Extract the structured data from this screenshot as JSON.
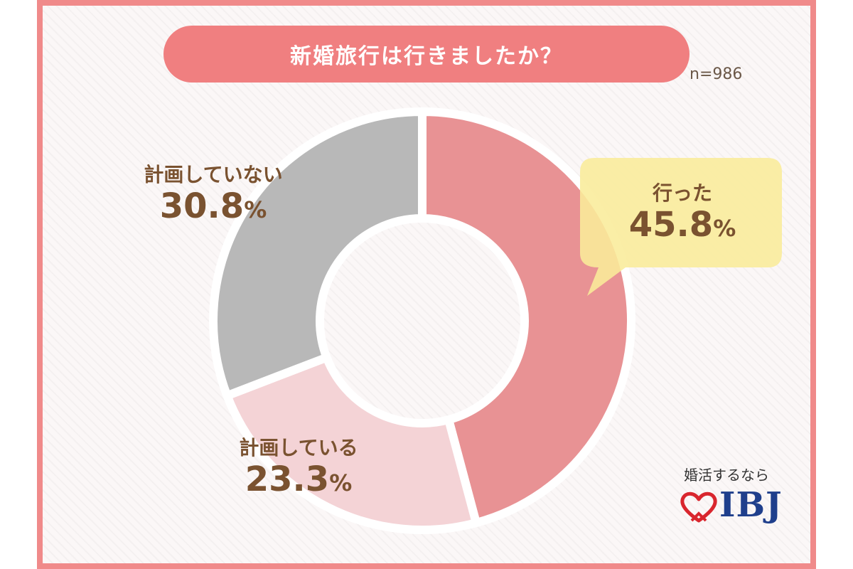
{
  "title": "新婚旅行は行きましたか？",
  "sample_size": "n=986",
  "brand": {
    "tagline": "婚活するなら",
    "logo_text": "IBJ"
  },
  "colors": {
    "frame": "#f08a8a",
    "title_bg": "#f07f80",
    "callout_bg": "#f9ec9a",
    "label_text": "#7a5230"
  },
  "chart_data": {
    "type": "pie",
    "variant": "donut",
    "direction": "clockwise-from-top",
    "slices": [
      {
        "label": "行った",
        "value": 45.8,
        "display": "45.8",
        "color": "#e89294"
      },
      {
        "label": "計画している",
        "value": 23.3,
        "display": "23.3",
        "color": "#f4d3d6"
      },
      {
        "label": "計画していない",
        "value": 30.8,
        "display": "30.8",
        "color": "#b8b8b8"
      }
    ],
    "unit": "%"
  }
}
